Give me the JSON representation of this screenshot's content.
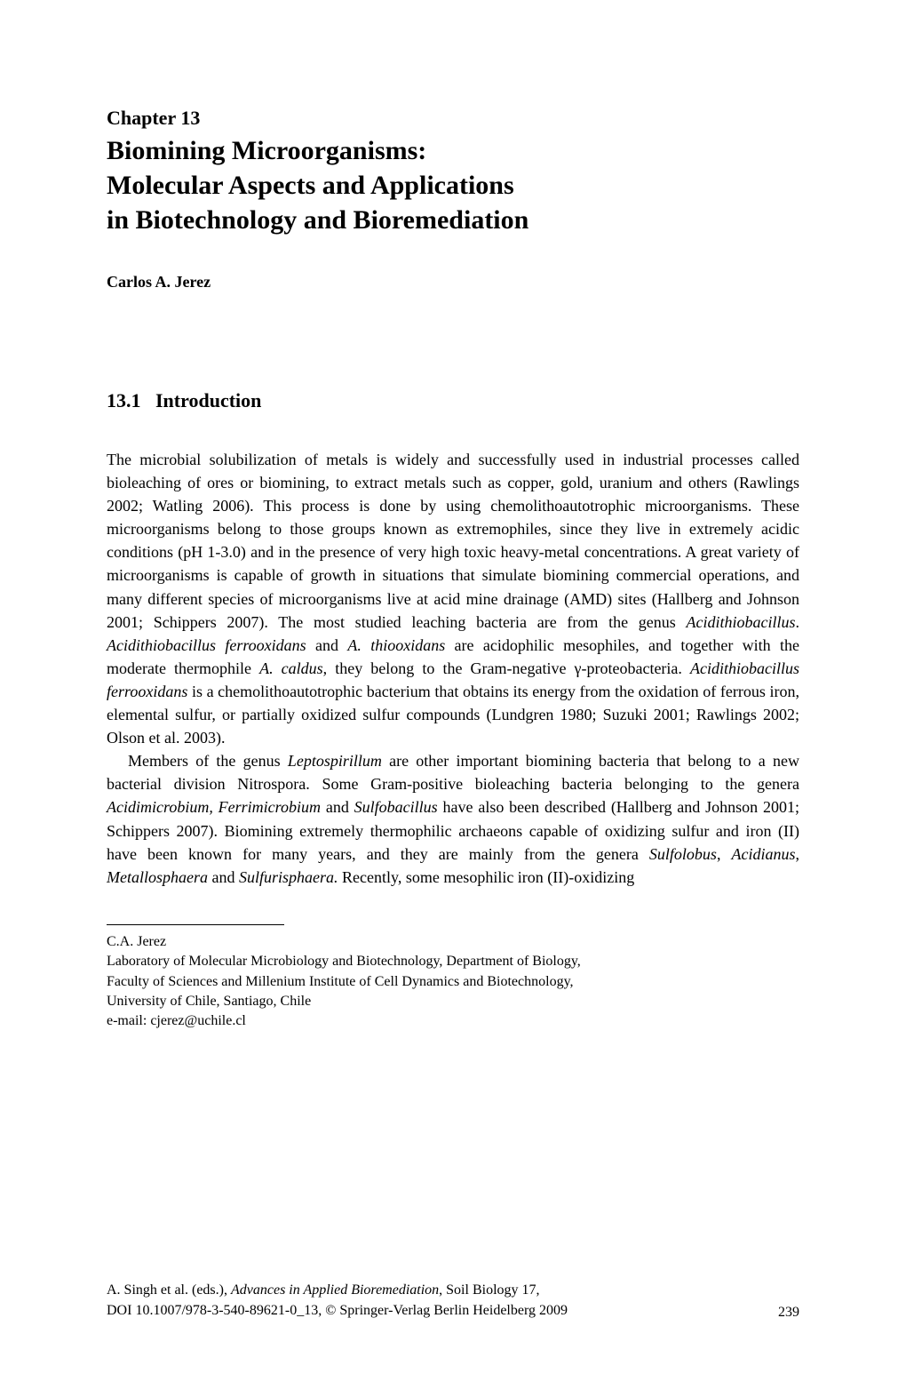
{
  "chapter": {
    "number": "Chapter 13",
    "title_line1": "Biomining Microorganisms:",
    "title_line2": "Molecular Aspects and Applications",
    "title_line3": "in Biotechnology and Bioremediation"
  },
  "author": "Carlos A. Jerez",
  "section": {
    "number": "13.1",
    "title": "Introduction"
  },
  "body": {
    "p1_part1": "The microbial solubilization of metals is widely and successfully used in industrial processes called bioleaching of ores or biomining, to extract metals such as copper, gold, uranium and others (Rawlings 2002; Watling 2006). This process is done by using chemolithoautotrophic microorganisms. These microorganisms belong to those groups known as extremophiles, since they live in extremely acidic conditions (pH 1-3.0) and in the presence of very high toxic heavy-metal concentrations. A great variety of microorganisms is capable of growth in situations that simulate biomining commercial operations, and many different species of microorganisms live at acid mine drainage (AMD) sites (Hallberg and Johnson 2001; Schippers 2007). The most studied leaching bacteria are from the genus ",
    "p1_italic1": "Acidithiobacillus",
    "p1_part2": ". ",
    "p1_italic2": "Acidithiobacillus ferrooxidans",
    "p1_part3": " and ",
    "p1_italic3": "A. thiooxidans",
    "p1_part4": " are acidophilic mesophiles, and together with the moderate thermophile ",
    "p1_italic4": "A. caldus",
    "p1_part5": ", they belong to the Gram-negative γ-proteobacteria. ",
    "p1_italic5": "Acidithiobacillus ferrooxidans",
    "p1_part6": " is a chemolithoautotrophic bacterium that obtains its energy from the oxidation of ferrous iron, elemental sulfur, or partially oxidized sulfur compounds (Lundgren 1980; Suzuki 2001; Rawlings 2002; Olson et al. 2003).",
    "p2_part1": "Members of the genus ",
    "p2_italic1": "Leptospirillum",
    "p2_part2": " are other important biomining bacteria that belong to a new bacterial division Nitrospora. Some Gram-positive bioleaching bacteria belonging to the genera ",
    "p2_italic2": "Acidimicrobium, Ferrimicrobium",
    "p2_part3": " and ",
    "p2_italic3": "Sulfobacillus",
    "p2_part4": " have also been described (Hallberg and Johnson 2001; Schippers 2007). Biomining extremely thermophilic archaeons capable of oxidizing sulfur and iron (II) have been known for many years, and they are mainly from the genera ",
    "p2_italic4": "Sulfolobus",
    "p2_part5": ", ",
    "p2_italic5": "Acidianus",
    "p2_part6": ", ",
    "p2_italic6": "Metallosphaera",
    "p2_part7": " and ",
    "p2_italic7": "Sulfurisphaera.",
    "p2_part8": " Recently, some mesophilic iron (II)-oxidizing"
  },
  "footnote": {
    "name": "C.A. Jerez",
    "affiliation_line1": "Laboratory of Molecular Microbiology and Biotechnology, Department of Biology,",
    "affiliation_line2": "Faculty of Sciences and Millenium Institute of Cell Dynamics and Biotechnology,",
    "affiliation_line3": "University of Chile, Santiago, Chile",
    "email": "e-mail: cjerez@uchile.cl"
  },
  "footer": {
    "editors": "A. Singh et al. (eds.), ",
    "book_title": "Advances in Applied Bioremediation",
    "series": ", Soil Biology 17,",
    "doi": "DOI 10.1007/978-3-540-89621-0_13, © Springer-Verlag Berlin Heidelberg 2009",
    "page_number": "239"
  }
}
